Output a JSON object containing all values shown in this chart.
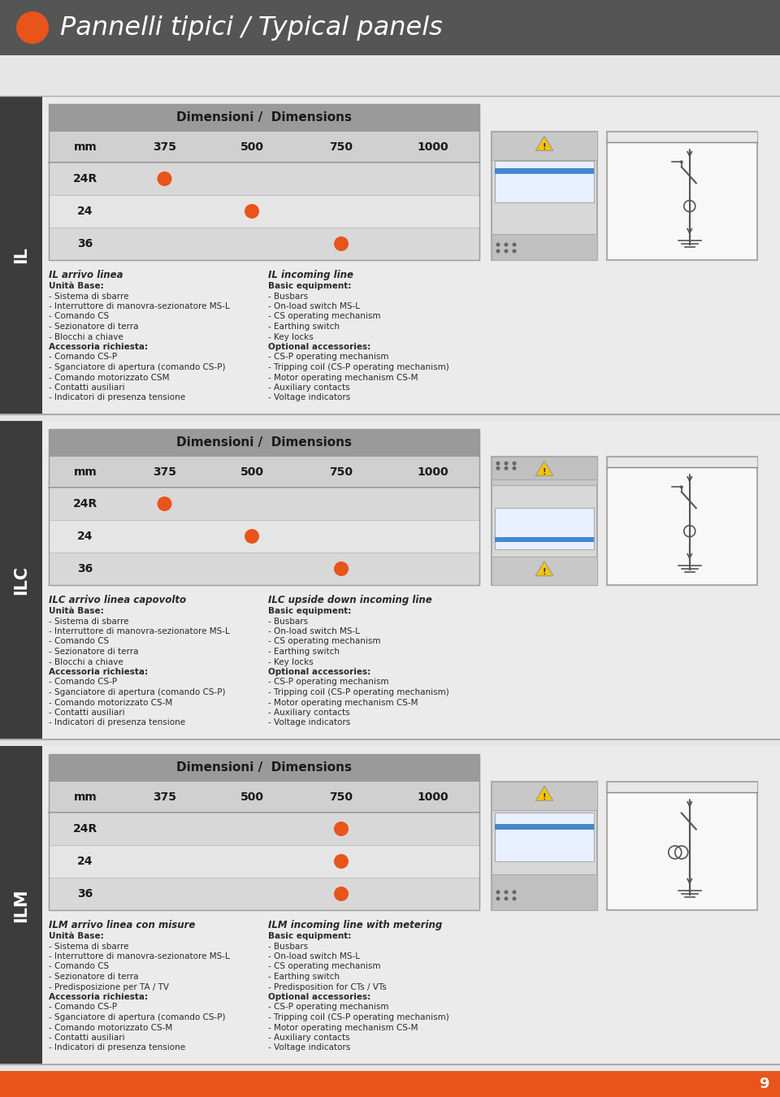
{
  "title": "Pannelli tipici / Typical panels",
  "orange": "#E8541A",
  "header_bg": "#555555",
  "body_bg": "#e8e8e8",
  "section_bg": "#ebebeb",
  "table_header_bg": "#9a9a9a",
  "sidebar_bg": "#3d3d3d",
  "dim_title": "Dimensioni /  Dimensions",
  "col_labels": [
    "mm",
    "375",
    "500",
    "750",
    "1000"
  ],
  "row_labels": [
    "24R",
    "24",
    "36"
  ],
  "page_number": "9",
  "sections": [
    {
      "label": "IL",
      "dot_positions": [
        {
          "row": 0,
          "col": 1
        },
        {
          "row": 1,
          "col": 2
        },
        {
          "row": 2,
          "col": 3
        }
      ],
      "left_title": "IL arrivo linea",
      "left_lines": [
        [
          "Unità Base:",
          true
        ],
        [
          "- Sistema di sbarre",
          false
        ],
        [
          "- Interruttore di manovra-sezionatore MS-L",
          false
        ],
        [
          "- Comando CS",
          false
        ],
        [
          "- Sezionatore di terra",
          false
        ],
        [
          "- Blocchi a chiave",
          false
        ],
        [
          "Accessoria richiesta:",
          true
        ],
        [
          "- Comando CS-P",
          false
        ],
        [
          "- Sganciatore di apertura (comando CS-P)",
          false
        ],
        [
          "- Comando motorizzato CSM",
          false
        ],
        [
          "- Contatti ausiliari",
          false
        ],
        [
          "- Indicatori di presenza tensione",
          false
        ]
      ],
      "right_title": "IL incoming line",
      "right_lines": [
        [
          "Basic equipment:",
          true
        ],
        [
          "- Busbars",
          false
        ],
        [
          "- On-load switch MS-L",
          false
        ],
        [
          "- CS operating mechanism",
          false
        ],
        [
          "- Earthing switch",
          false
        ],
        [
          "- Key locks",
          false
        ],
        [
          "Optional accessories:",
          true
        ],
        [
          "- CS-P operating mechanism",
          false
        ],
        [
          "- Tripping coil (CS-P operating mechanism)",
          false
        ],
        [
          "- Motor operating mechanism CS-M",
          false
        ],
        [
          "- Auxiliary contacts",
          false
        ],
        [
          "- Voltage indicators",
          false
        ]
      ]
    },
    {
      "label": "ILC",
      "dot_positions": [
        {
          "row": 0,
          "col": 1
        },
        {
          "row": 1,
          "col": 2
        },
        {
          "row": 2,
          "col": 3
        }
      ],
      "left_title": "ILC arrivo linea capovolto",
      "left_lines": [
        [
          "Unità Base:",
          true
        ],
        [
          "- Sistema di sbarre",
          false
        ],
        [
          "- Interruttore di manovra-sezionatore MS-L",
          false
        ],
        [
          "- Comando CS",
          false
        ],
        [
          "- Sezionatore di terra",
          false
        ],
        [
          "- Blocchi a chiave",
          false
        ],
        [
          "Accessoria richiesta:",
          true
        ],
        [
          "- Comando CS-P",
          false
        ],
        [
          "- Sganciatore di apertura (comando CS-P)",
          false
        ],
        [
          "- Comando motorizzato CS-M",
          false
        ],
        [
          "- Contatti ausiliari",
          false
        ],
        [
          "- Indicatori di presenza tensione",
          false
        ]
      ],
      "right_title": "ILC upside down incoming line",
      "right_lines": [
        [
          "Basic equipment:",
          true
        ],
        [
          "- Busbars",
          false
        ],
        [
          "- On-load switch MS-L",
          false
        ],
        [
          "- CS operating mechanism",
          false
        ],
        [
          "- Earthing switch",
          false
        ],
        [
          "- Key locks",
          false
        ],
        [
          "Optional accessories:",
          true
        ],
        [
          "- CS-P operating mechanism",
          false
        ],
        [
          "- Tripping coil (CS-P operating mechanism)",
          false
        ],
        [
          "- Motor operating mechanism CS-M",
          false
        ],
        [
          "- Auxiliary contacts",
          false
        ],
        [
          "- Voltage indicators",
          false
        ]
      ]
    },
    {
      "label": "ILM",
      "dot_positions": [
        {
          "row": 0,
          "col": 3
        },
        {
          "row": 1,
          "col": 3
        },
        {
          "row": 2,
          "col": 3
        }
      ],
      "left_title": "ILM arrivo linea con misure",
      "left_lines": [
        [
          "Unità Base:",
          true
        ],
        [
          "- Sistema di sbarre",
          false
        ],
        [
          "- Interruttore di manovra-sezionatore MS-L",
          false
        ],
        [
          "- Comando CS",
          false
        ],
        [
          "- Sezionatore di terra",
          false
        ],
        [
          "- Predisposizione per TA / TV",
          false
        ],
        [
          "Accessoria richiesta:",
          true
        ],
        [
          "- Comando CS-P",
          false
        ],
        [
          "- Sganciatore di apertura (comando CS-P)",
          false
        ],
        [
          "- Comando motorizzato CS-M",
          false
        ],
        [
          "- Contatti ausiliari",
          false
        ],
        [
          "- Indicatori di presenza tensione",
          false
        ]
      ],
      "right_title": "ILM incoming line with metering",
      "right_lines": [
        [
          "Basic equipment:",
          true
        ],
        [
          "- Busbars",
          false
        ],
        [
          "- On-load switch MS-L",
          false
        ],
        [
          "- CS operating mechanism",
          false
        ],
        [
          "- Earthing switch",
          false
        ],
        [
          "- Predisposition for CTs / VTs",
          false
        ],
        [
          "Optional accessories:",
          true
        ],
        [
          "- CS-P operating mechanism",
          false
        ],
        [
          "- Tripping coil (CS-P operating mechanism)",
          false
        ],
        [
          "- Motor operating mechanism CS-M",
          false
        ],
        [
          "- Auxiliary contacts",
          false
        ],
        [
          "- Voltage indicators",
          false
        ]
      ]
    }
  ]
}
